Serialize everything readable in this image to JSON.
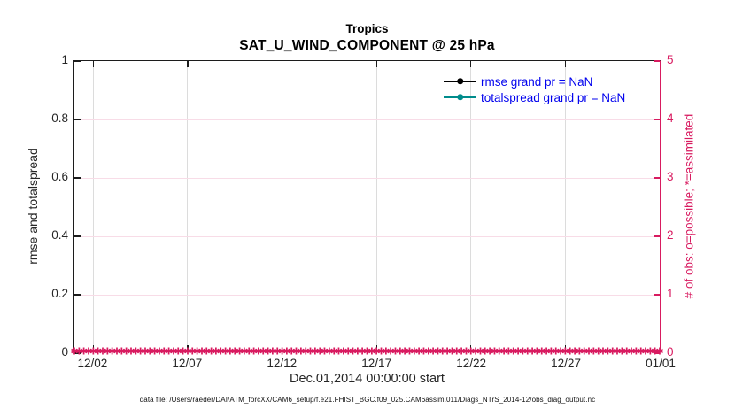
{
  "title": {
    "line1": "Tropics",
    "line2": "SAT_U_WIND_COMPONENT @ 25 hPa"
  },
  "legend": {
    "text_color": "#0000ee",
    "entries": [
      {
        "label": "rmse grand pr = NaN",
        "color": "#000000"
      },
      {
        "label": "totalspread grand pr = NaN",
        "color": "#008c8c"
      }
    ]
  },
  "chart_data": {
    "type": "line",
    "title": "Tropics",
    "subtitle": "SAT_U_WIND_COMPONENT @ 25 hPa",
    "x_axis": {
      "label": "Dec.01,2014 00:00:00 start",
      "range_days": [
        0,
        31
      ],
      "tick_positions_days": [
        1,
        6,
        11,
        16,
        21,
        26,
        31
      ],
      "tick_labels": [
        "12/02",
        "12/07",
        "12/12",
        "12/17",
        "12/22",
        "12/27",
        "01/01"
      ],
      "axis_color": "#1c1c1c"
    },
    "y_axis_left": {
      "label": "rmse and totalspread",
      "range": [
        0,
        1
      ],
      "ticks": [
        0,
        0.2,
        0.4,
        0.6,
        0.8,
        1
      ],
      "tick_labels": [
        "0",
        "0.2",
        "0.4",
        "0.6",
        "0.8",
        "1"
      ],
      "color": "#262626"
    },
    "y_axis_right": {
      "label": "# of obs: o=possible; *=assimilated",
      "range": [
        0,
        5
      ],
      "ticks": [
        0,
        1,
        2,
        3,
        4,
        5
      ],
      "tick_labels": [
        "0",
        "1",
        "2",
        "3",
        "4",
        "5"
      ],
      "color": "#d81b60"
    },
    "series": [
      {
        "name": "rmse grand pr = NaN",
        "style": "line+circle-marker",
        "color": "#000000",
        "values": "NaN"
      },
      {
        "name": "totalspread grand pr = NaN",
        "style": "line+circle-marker",
        "color": "#008c8c",
        "values": "NaN"
      }
    ],
    "obs_series": {
      "name": "# of obs (o=possible, *=assimilated)",
      "marker_glyph": "✱",
      "color": "#d81b60",
      "value_all_points": 0,
      "marker_count": 125
    },
    "grid": {
      "on": true,
      "x_grid_color": "#dcdcdc",
      "y_grid_color": "#f8dce7"
    },
    "legend_position": "top-right-inside",
    "legend_box": false
  },
  "footer": {
    "data_file": "data file: /Users/raeder/DAI/ATM_forcXX/CAM6_setup/f.e21.FHIST_BGC.f09_025.CAM6assim.011/Diags_NTrS_2014-12/obs_diag_output.nc"
  }
}
